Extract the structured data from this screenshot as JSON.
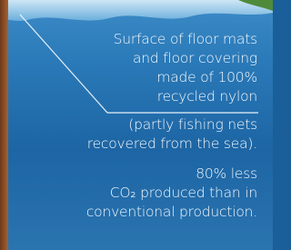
{
  "blocks": [
    {
      "lines": [
        "Surface of floor mats",
        "and floor covering",
        "made of 100%",
        "recycled nylon"
      ]
    },
    {
      "lines": [
        "(partly fishing nets",
        "recovered from the sea)."
      ]
    },
    {
      "lines": [
        "80% less",
        "CO₂ produced than in",
        "conventional production."
      ]
    }
  ]
}
